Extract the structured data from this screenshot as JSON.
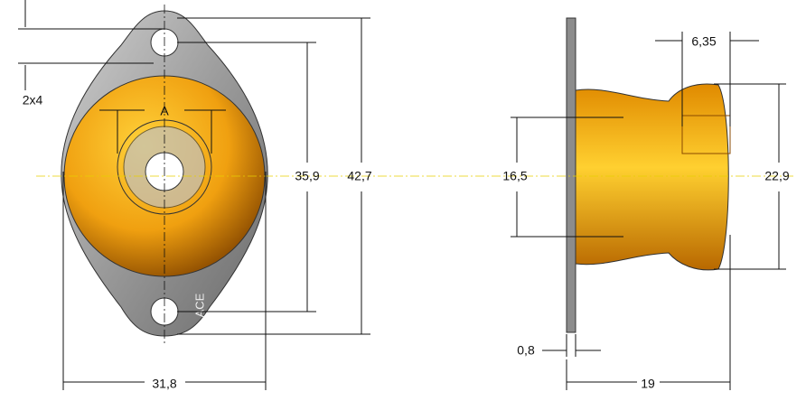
{
  "labels": {
    "holes": "2x4",
    "a": "A",
    "hole_spacing": "35,9",
    "flange_length": "42,7",
    "body_diameter": "31,8",
    "neck_diameter": "16,5",
    "head_diameter": "22,9",
    "head_width": "6,35",
    "plate_thickness": "0,8",
    "total_height": "19",
    "brand": "ACE"
  }
}
